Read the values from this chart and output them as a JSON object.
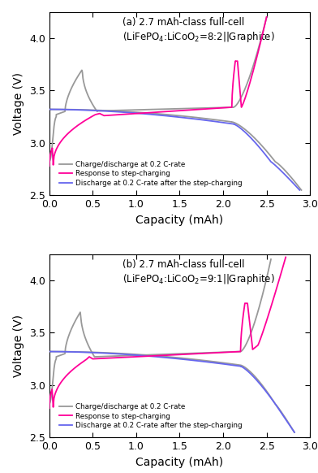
{
  "title_a": "(a) 2.7 mAh-class full-cell\n(LiFePO$_4$:LiCoO$_2$=8:2||Graphite)",
  "title_b": "(b) 2.7 mAh-class full-cell\n(LiFePO$_4$:LiCoO$_2$=9:1||Graphite)",
  "xlabel": "Capacity (mAh)",
  "ylabel": "Voltage (V)",
  "xlim": [
    0.0,
    3.0
  ],
  "ylim": [
    2.5,
    4.25
  ],
  "yticks": [
    2.5,
    3.0,
    3.5,
    4.0
  ],
  "xticks": [
    0.0,
    0.5,
    1.0,
    1.5,
    2.0,
    2.5,
    3.0
  ],
  "color_gray": "#999999",
  "color_magenta": "#FF0099",
  "color_blue": "#6666EE",
  "legend_labels": [
    "Charge/discharge at 0.2 C-rate",
    "Response to step-charging",
    "Discharge at 0.2 C-rate after the step-charging"
  ],
  "lw": 1.3,
  "figsize": [
    3.92,
    5.82
  ],
  "dpi": 100
}
